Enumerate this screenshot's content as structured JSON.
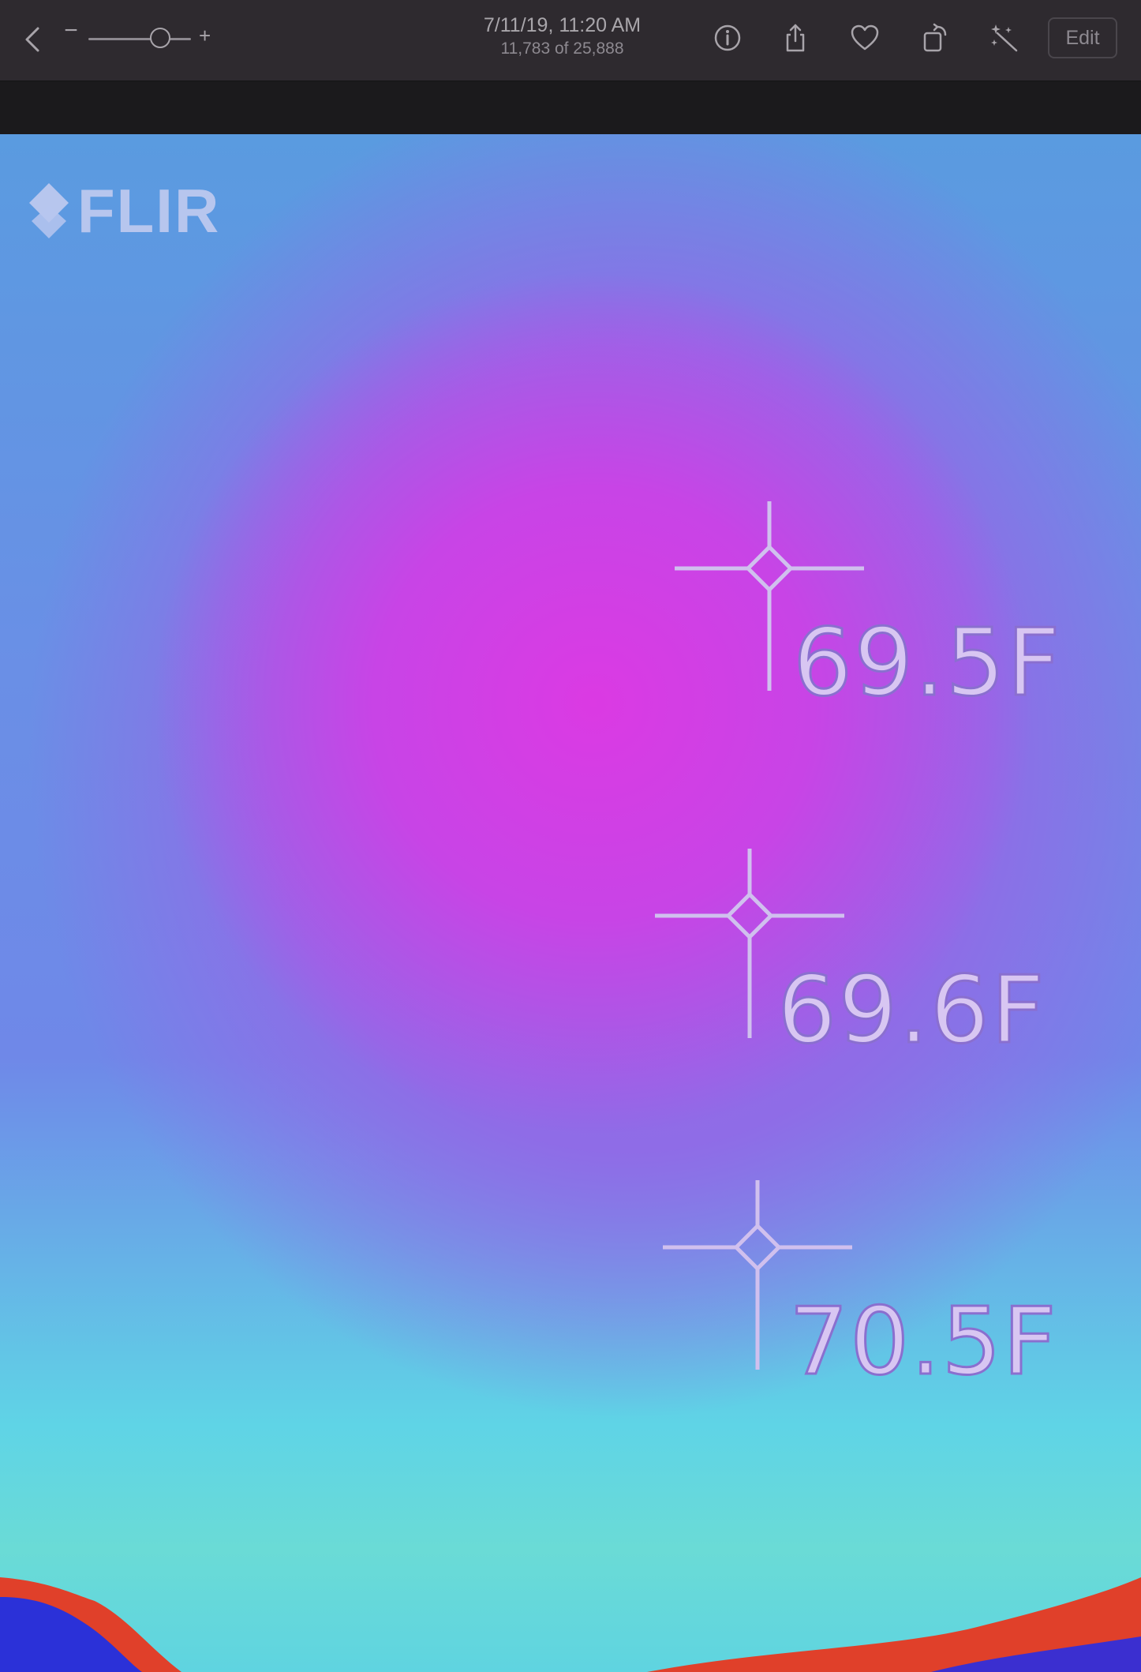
{
  "toolbar": {
    "title_date": "7/11/19, 11:20 AM",
    "title_count": "11,783 of 25,888",
    "zoom_minus": "−",
    "zoom_plus": "+",
    "edit_label": "Edit",
    "zoom_level": 0.7,
    "icons": [
      "chevron-left-icon",
      "info-icon",
      "share-icon",
      "heart-icon",
      "rotate-icon",
      "magic-wand-icon"
    ]
  },
  "photo": {
    "logo_text": "FLIR",
    "measurements": [
      {
        "label": "69.5F"
      },
      {
        "label": "69.6F"
      },
      {
        "label": "70.5F"
      }
    ]
  }
}
